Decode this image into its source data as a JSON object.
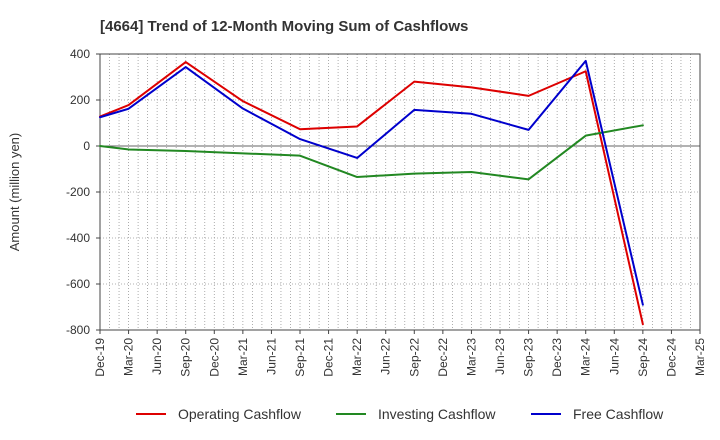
{
  "chart_data": {
    "type": "line",
    "title": "[4664]  Trend of 12-Month Moving Sum of Cashflows",
    "ylabel": "Amount (million yen)",
    "xlabel": "",
    "ylim": [
      -800,
      400
    ],
    "yticks": [
      400,
      200,
      0,
      -200,
      -400,
      -600,
      -800
    ],
    "categories": [
      "Dec-19",
      "Mar-20",
      "Jun-20",
      "Sep-20",
      "Dec-20",
      "Mar-21",
      "Jun-21",
      "Sep-21",
      "Dec-21",
      "Mar-22",
      "Jun-22",
      "Sep-22",
      "Dec-22",
      "Mar-23",
      "Jun-23",
      "Sep-23",
      "Dec-23",
      "Mar-24",
      "Jun-24",
      "Sep-24",
      "Dec-24",
      "Mar-25"
    ],
    "grid": true,
    "legend_position": "bottom",
    "series": [
      {
        "name": "Operating Cashflow",
        "color": "#dd0000",
        "points": [
          {
            "x": "Dec-19",
            "y": 128
          },
          {
            "x": "Mar-20",
            "y": 178
          },
          {
            "x": "Sep-20",
            "y": 365
          },
          {
            "x": "Mar-21",
            "y": 195
          },
          {
            "x": "Sep-21",
            "y": 73
          },
          {
            "x": "Mar-22",
            "y": 85
          },
          {
            "x": "Sep-22",
            "y": 280
          },
          {
            "x": "Mar-23",
            "y": 255
          },
          {
            "x": "Sep-23",
            "y": 218
          },
          {
            "x": "Mar-24",
            "y": 325
          },
          {
            "x": "Sep-24",
            "y": -775
          }
        ]
      },
      {
        "name": "Investing Cashflow",
        "color": "#228822",
        "points": [
          {
            "x": "Dec-19",
            "y": 0
          },
          {
            "x": "Mar-20",
            "y": -15
          },
          {
            "x": "Sep-20",
            "y": -22
          },
          {
            "x": "Mar-21",
            "y": -32
          },
          {
            "x": "Sep-21",
            "y": -42
          },
          {
            "x": "Mar-22",
            "y": -135
          },
          {
            "x": "Sep-22",
            "y": -120
          },
          {
            "x": "Mar-23",
            "y": -113
          },
          {
            "x": "Sep-23",
            "y": -145
          },
          {
            "x": "Mar-24",
            "y": 45
          },
          {
            "x": "Sep-24",
            "y": 90
          }
        ]
      },
      {
        "name": "Free Cashflow",
        "color": "#0000cc",
        "points": [
          {
            "x": "Dec-19",
            "y": 125
          },
          {
            "x": "Mar-20",
            "y": 162
          },
          {
            "x": "Sep-20",
            "y": 343
          },
          {
            "x": "Mar-21",
            "y": 163
          },
          {
            "x": "Sep-21",
            "y": 30
          },
          {
            "x": "Mar-22",
            "y": -52
          },
          {
            "x": "Sep-22",
            "y": 157
          },
          {
            "x": "Mar-23",
            "y": 140
          },
          {
            "x": "Sep-23",
            "y": 70
          },
          {
            "x": "Mar-24",
            "y": 370
          },
          {
            "x": "Sep-24",
            "y": -690
          }
        ]
      }
    ]
  }
}
